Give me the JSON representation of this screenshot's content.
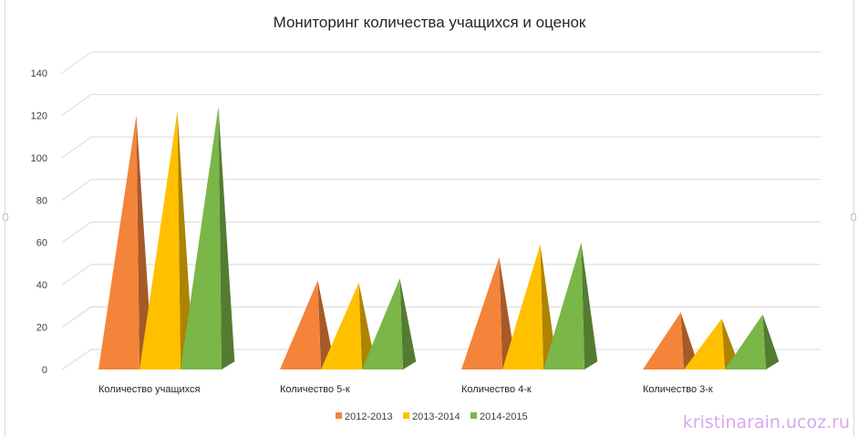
{
  "chart_data": {
    "type": "bar",
    "bar_shape": "3d-pyramid",
    "title": "Мониторинг количества учащихся и оценок",
    "xlabel": "",
    "ylabel": "",
    "categories": [
      "Количество учащихся",
      "Количество 5-к",
      "Количество 4-к",
      "Количество 3-к"
    ],
    "series": [
      {
        "name": "2012-2013",
        "color": "#f4843a",
        "values": [
          120,
          42,
          53,
          27
        ]
      },
      {
        "name": "2013-2014",
        "color": "#ffc000",
        "values": [
          122,
          41,
          59,
          24
        ]
      },
      {
        "name": "2014-2015",
        "color": "#7ab648",
        "values": [
          124,
          43,
          60,
          26
        ]
      }
    ],
    "ylim": [
      0,
      140
    ],
    "yticks": [
      "0",
      "20",
      "40",
      "60",
      "80",
      "100",
      "120",
      "140"
    ],
    "grid": true,
    "legend_position": "bottom"
  },
  "watermark": "kristinarain.ucoz.ru"
}
